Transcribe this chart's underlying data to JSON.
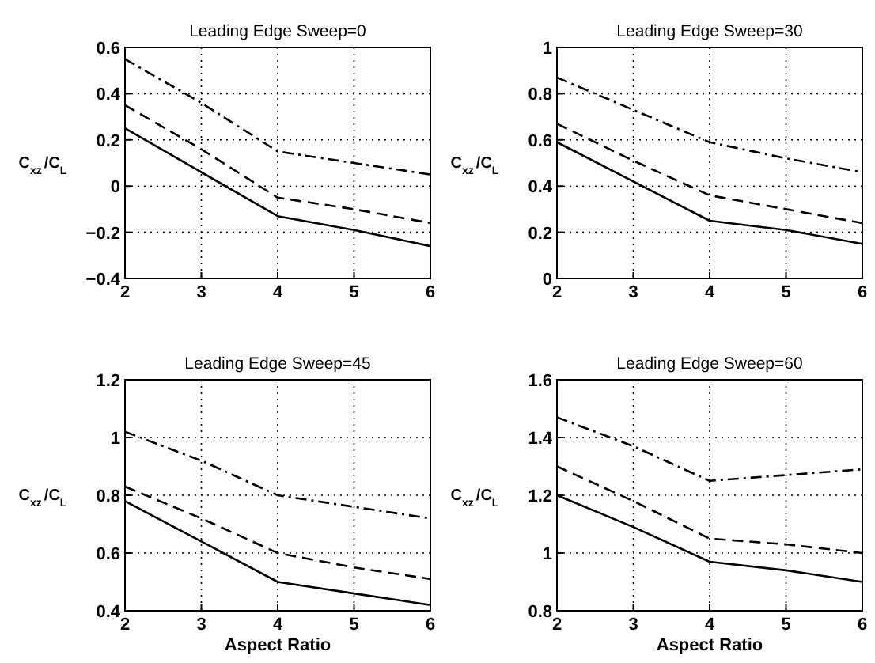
{
  "chart_data": [
    {
      "type": "line",
      "title": "Leading Edge Sweep=0",
      "ylabel": "C$_{xz}$/C$_{L}$",
      "x": [
        2,
        3,
        4,
        5,
        6
      ],
      "xlim": [
        2,
        6
      ],
      "xticks": [
        2,
        3,
        4,
        5,
        6
      ],
      "ylim": [
        -0.4,
        0.6
      ],
      "yticks": [
        {
          "value": -0.4,
          "label": "−0.4"
        },
        {
          "value": -0.2,
          "label": "−0.2"
        },
        0,
        0.2,
        0.4,
        0.6
      ],
      "grid": true,
      "series": [
        {
          "color": "#000000",
          "line_style": "solid",
          "values": [
            0.25,
            0.06,
            -0.13,
            -0.19,
            -0.26
          ]
        },
        {
          "color": "#000000",
          "line_style": "dashed",
          "values": [
            0.35,
            0.16,
            -0.05,
            -0.1,
            -0.16
          ]
        },
        {
          "color": "#000000",
          "line_style": "dashdot",
          "values": [
            0.55,
            0.36,
            0.15,
            0.1,
            0.05
          ]
        }
      ]
    },
    {
      "type": "line",
      "title": "Leading Edge Sweep=30",
      "ylabel": "C$_{xz}$/C$_{L}$",
      "x": [
        2,
        3,
        4,
        5,
        6
      ],
      "xlim": [
        2,
        6
      ],
      "xticks": [
        2,
        3,
        4,
        5,
        6
      ],
      "ylim": [
        0,
        1
      ],
      "yticks": [
        0,
        0.2,
        0.4,
        0.6,
        0.8,
        1
      ],
      "grid": true,
      "series": [
        {
          "color": "#000000",
          "line_style": "solid",
          "values": [
            0.59,
            0.42,
            0.25,
            0.21,
            0.15
          ]
        },
        {
          "color": "#000000",
          "line_style": "dashed",
          "values": [
            0.67,
            0.51,
            0.36,
            0.3,
            0.24
          ]
        },
        {
          "color": "#000000",
          "line_style": "dashdot",
          "values": [
            0.87,
            0.73,
            0.59,
            0.52,
            0.46
          ]
        }
      ]
    },
    {
      "type": "line",
      "title": "Leading Edge Sweep=45",
      "xlabel": "Aspect Ratio",
      "ylabel": "C$_{xz}$/C$_{L}$",
      "x": [
        2,
        3,
        4,
        5,
        6
      ],
      "xlim": [
        2,
        6
      ],
      "xticks": [
        2,
        3,
        4,
        5,
        6
      ],
      "ylim": [
        0.4,
        1.2
      ],
      "yticks": [
        0.4,
        0.6,
        0.8,
        1,
        1.2
      ],
      "grid": true,
      "series": [
        {
          "color": "#000000",
          "line_style": "solid",
          "values": [
            0.78,
            0.64,
            0.5,
            0.46,
            0.42
          ]
        },
        {
          "color": "#000000",
          "line_style": "dashed",
          "values": [
            0.83,
            0.72,
            0.6,
            0.55,
            0.51
          ]
        },
        {
          "color": "#000000",
          "line_style": "dashdot",
          "values": [
            1.02,
            0.92,
            0.8,
            0.76,
            0.72
          ]
        }
      ]
    },
    {
      "type": "line",
      "title": "Leading Edge Sweep=60",
      "xlabel": "Aspect Ratio",
      "ylabel": "C$_{xz}$/C$_{L}$",
      "x": [
        2,
        3,
        4,
        5,
        6
      ],
      "xlim": [
        2,
        6
      ],
      "xticks": [
        2,
        3,
        4,
        5,
        6
      ],
      "ylim": [
        0.8,
        1.6
      ],
      "yticks": [
        0.8,
        1,
        1.2,
        1.4,
        1.6
      ],
      "grid": true,
      "series": [
        {
          "color": "#000000",
          "line_style": "solid",
          "values": [
            1.2,
            1.09,
            0.97,
            0.94,
            0.9
          ]
        },
        {
          "color": "#000000",
          "line_style": "dashed",
          "values": [
            1.3,
            1.18,
            1.05,
            1.03,
            1.0
          ]
        },
        {
          "color": "#000000",
          "line_style": "dashdot",
          "values": [
            1.47,
            1.37,
            1.25,
            1.27,
            1.29
          ]
        }
      ]
    }
  ]
}
